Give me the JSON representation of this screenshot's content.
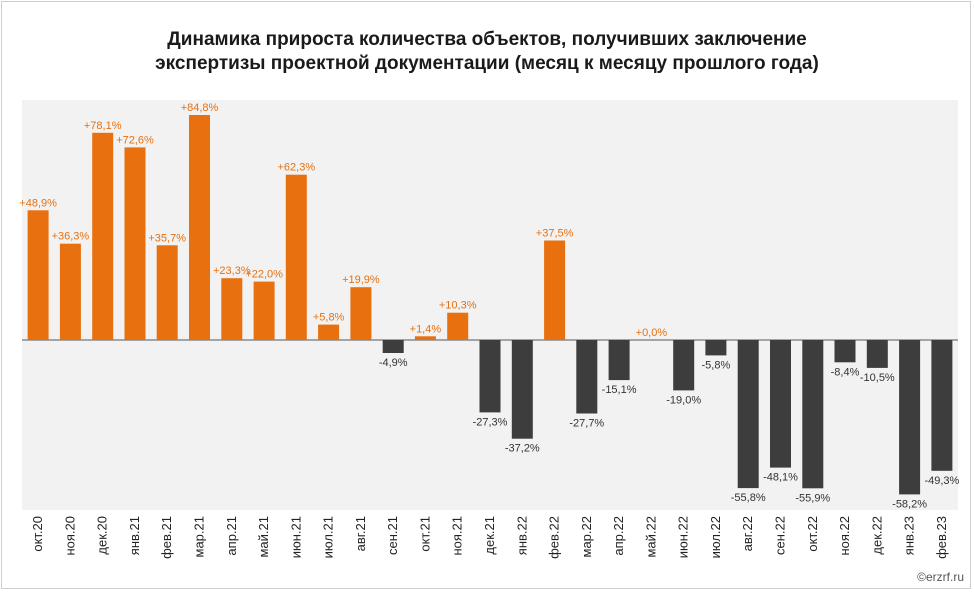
{
  "chart_data": {
    "type": "bar",
    "title_line1": "Динамика прироста количества объектов, получивших заключение",
    "title_line2": "экспертизы проектной документации (месяц к месяцу прошлого года)",
    "categories": [
      "окт.20",
      "ноя.20",
      "дек.20",
      "янв.21",
      "фев.21",
      "мар.21",
      "апр.21",
      "май.21",
      "июн.21",
      "июл.21",
      "авг.21",
      "сен.21",
      "окт.21",
      "ноя.21",
      "дек.21",
      "янв.22",
      "фев.22",
      "мар.22",
      "апр.22",
      "май.22",
      "июн.22",
      "июл.22",
      "авг.22",
      "сен.22",
      "окт.22",
      "ноя.22",
      "дек.22",
      "янв.23",
      "фев.23"
    ],
    "values": [
      48.9,
      36.3,
      78.1,
      72.6,
      35.7,
      84.8,
      23.3,
      22.0,
      62.3,
      5.8,
      19.9,
      -4.9,
      1.4,
      10.3,
      -27.3,
      -37.2,
      37.5,
      -27.7,
      -15.1,
      0.0,
      -19.0,
      -5.8,
      -55.8,
      -48.1,
      -55.9,
      -8.4,
      -10.5,
      -58.2,
      -49.3
    ],
    "labels": [
      "+48,9%",
      "+36,3%",
      "+78,1%",
      "+72,6%",
      "+35,7%",
      "+84,8%",
      "+23,3%",
      "+22,0%",
      "+62,3%",
      "+5,8%",
      "+19,9%",
      "-4,9%",
      "+1,4%",
      "+10,3%",
      "-27,3%",
      "-37,2%",
      "+37,5%",
      "-27,7%",
      "-15,1%",
      "+0,0%",
      "-19,0%",
      "-5,8%",
      "-55,8%",
      "-48,1%",
      "-55,9%",
      "-8,4%",
      "-10,5%",
      "-58,2%",
      "-49,3%"
    ],
    "positive_color": "#e8700f",
    "negative_color": "#3d3d3d",
    "positive_label_color": "#e8700f",
    "negative_label_color": "#333333",
    "plot_background": "#f2f2f2",
    "ylim": [
      -63,
      86
    ],
    "grid": false,
    "legend": "none"
  },
  "credit": "©erzrf.ru"
}
